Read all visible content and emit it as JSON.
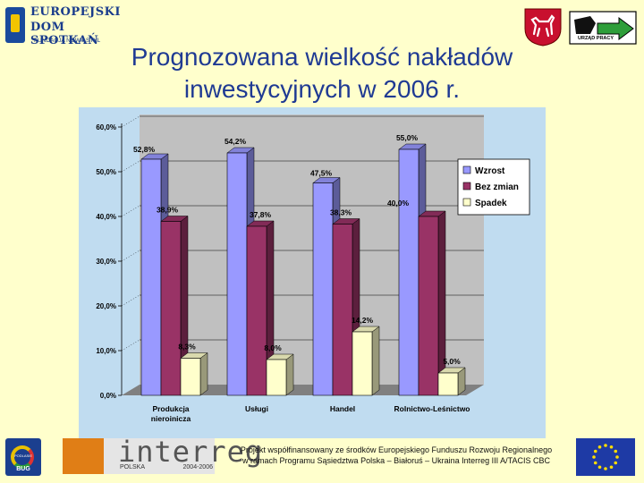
{
  "header": {
    "edo_line1": "EUROPEJSKI",
    "edo_line2": "DOM SPOTKAŃ",
    "edo_line3": "FUNDACJA NOWY STYL",
    "up_label": "URZĄD PRACY"
  },
  "title": {
    "line1": "Prognozowana wielkość nakładów",
    "line2": "inwestycyjnych w 2006 r."
  },
  "chart_data": {
    "type": "bar",
    "categories": [
      "Produkcja\nnieroinicza",
      "Usługi",
      "Handel",
      "Rolnictwo-Leśnictwo"
    ],
    "series": [
      {
        "name": "Wzrost",
        "values": [
          52.8,
          54.2,
          47.5,
          55.0
        ],
        "labels": [
          "52,8%",
          "54,2%",
          "47,5%",
          "55,0%"
        ],
        "color": "#9999ff"
      },
      {
        "name": "Bez zmian",
        "values": [
          38.9,
          37.8,
          38.3,
          40.0
        ],
        "labels": [
          "38,9%",
          "37,8%",
          "38,3%",
          "40,0%"
        ],
        "color": "#993366"
      },
      {
        "name": "Spadek",
        "values": [
          8.3,
          8.0,
          14.2,
          5.0
        ],
        "labels": [
          "8,3%",
          "8,0%",
          "14,2%",
          "5,0%"
        ],
        "color": "#ffffcc"
      }
    ],
    "ylim": [
      0,
      60
    ],
    "yticks": [
      "0,0%",
      "10,0%",
      "20,0%",
      "30,0%",
      "40,0%",
      "50,0%",
      "60,0%"
    ],
    "legend_position": "right",
    "grid": true,
    "colors": {
      "wall": "#c0c0c0",
      "area": "#c0dcf0",
      "floor": "#808080"
    }
  },
  "footer": {
    "podlasie_t1": "PODLASIE",
    "podlasie_t2": "BUG",
    "interreg_word": "interreg",
    "interreg_country": "POLSKA",
    "interreg_years": "2004-2006",
    "text": "Projekt współfinansowany ze środków Europejskiego Funduszu Rozwoju Regionalnego w ramach Programu Sąsiedztwa Polska – Białoruś – Ukraina Interreg III A/TACIS CBC"
  }
}
